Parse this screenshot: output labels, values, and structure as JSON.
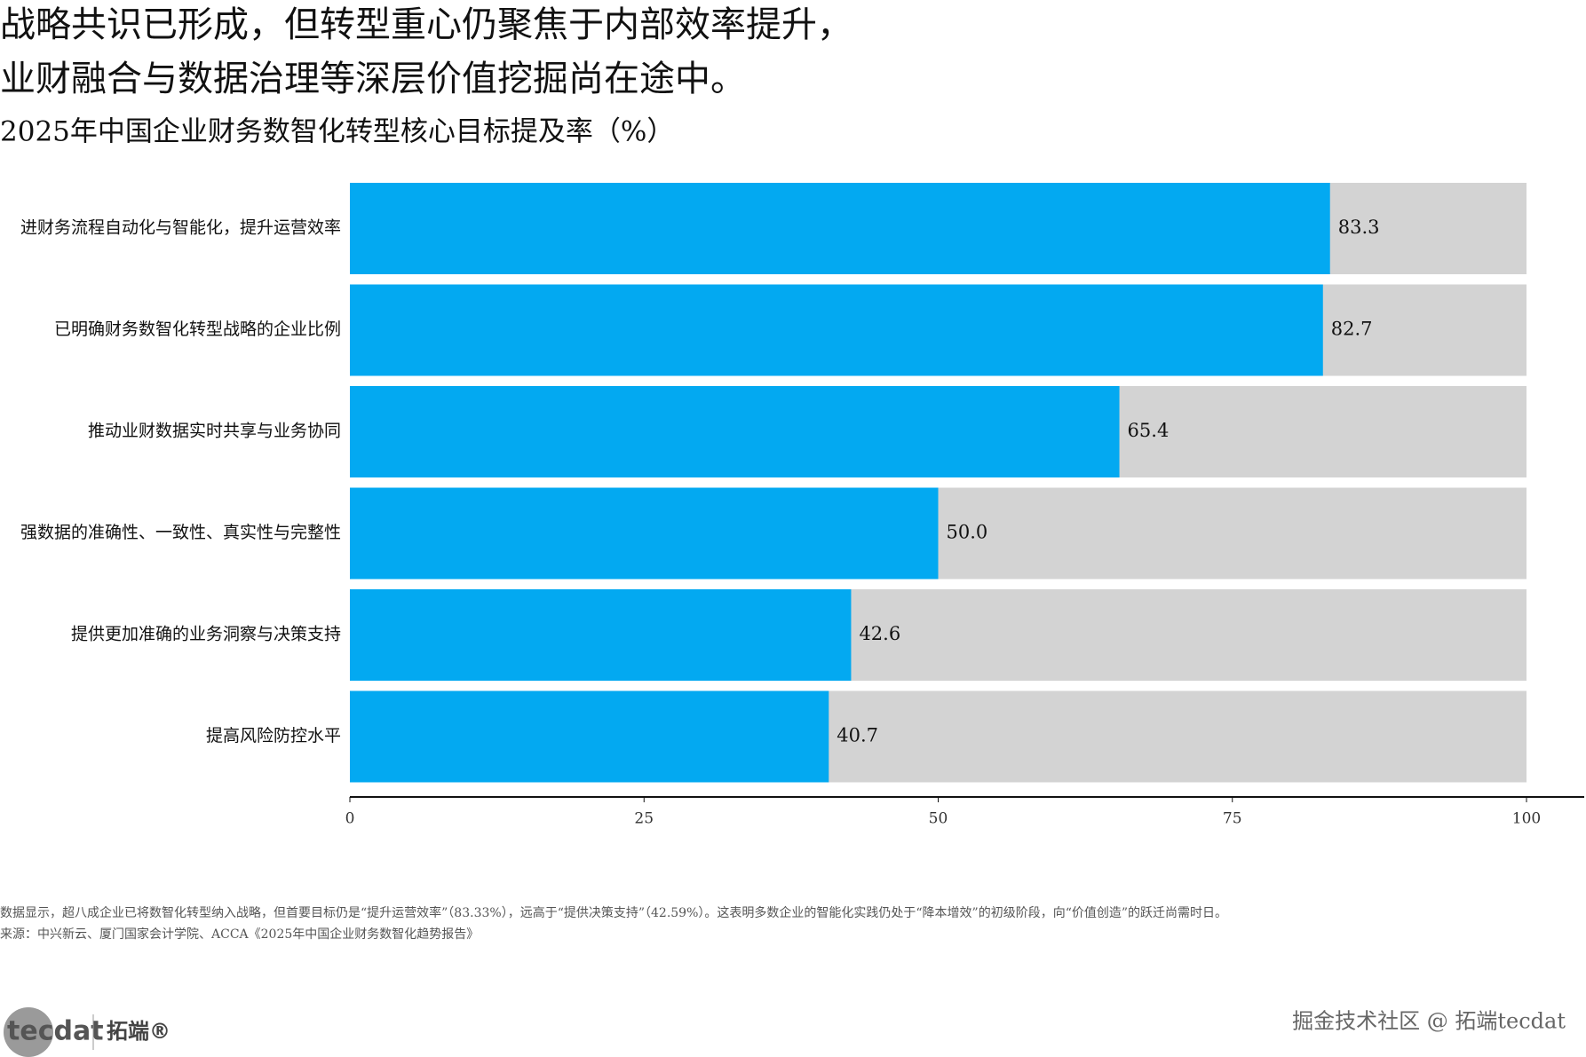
{
  "chart_data": {
    "type": "bar",
    "orientation": "horizontal",
    "title_lines": [
      "战略共识已形成，但转型重心仍聚焦于内部效率提升，",
      "业财融合与数据治理等深层价值挖掘尚在途中。"
    ],
    "subtitle": "2025年中国企业财务数智化转型核心目标提及率（%）",
    "categories": [
      "进财务流程自动化与智能化，提升运营效率",
      "已明确财务数智化转型战略的企业比例",
      "推动业财数据实时共享与业务协同",
      "强数据的准确性、一致性、真实性与完整性",
      "提供更加准确的业务洞察与决策支持",
      "提高风险防控水平"
    ],
    "values": [
      83.3,
      82.7,
      65.4,
      50.0,
      42.6,
      40.7
    ],
    "value_labels": [
      "83.3",
      "82.7",
      "65.4",
      "50.0",
      "42.6",
      "40.7"
    ],
    "color": "#03a9f1",
    "track_color": "#d3d3d3",
    "xlim": [
      0,
      100
    ],
    "xticks": [
      0,
      25,
      50,
      75,
      100
    ],
    "notes": [
      "数据显示，超八成企业已将数智化转型纳入战略，但首要目标仍是“提升运营效率”（83.33%），远高于“提供决策支持”（42.59%）。这表明多数企业的智能化实践仍处于“降本增效”的初级阶段，向“价值创造”的跃迁尚需时日。",
      "来源：中兴新云、厦门国家会计学院、ACCA《2025年中国企业财务数智化趋势报告》"
    ],
    "logo": {
      "mark": "tecdat",
      "name": "拓端®"
    },
    "watermark": "掘金技术社区 @ 拓端tecdat"
  }
}
